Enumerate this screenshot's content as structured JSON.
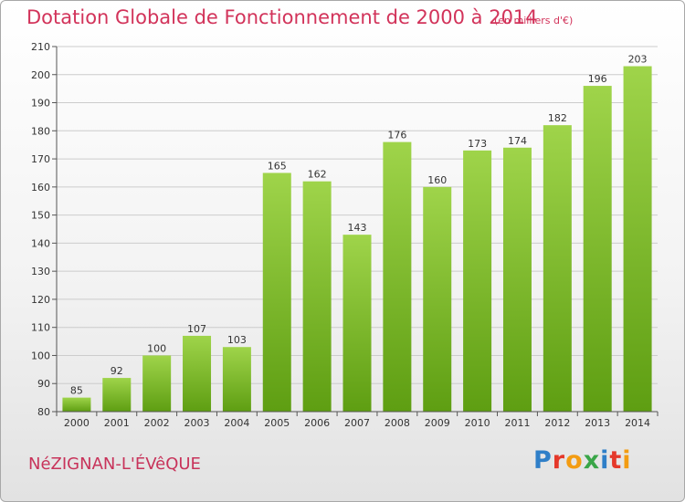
{
  "header": {
    "title": "Dotation Globale de Fonctionnement de 2000 à 2014",
    "unit": "(en milliers d'€)"
  },
  "footer": {
    "commune": "NéZIGNAN-L'ÉVêQUE",
    "logo_text": "Proxiti",
    "logo_colors": [
      "#2f7fc8",
      "#e5382a",
      "#f39c12",
      "#3aa648",
      "#2f7fc8",
      "#e5382a",
      "#f39c12"
    ]
  },
  "colors": {
    "bar_top": "#9fd44a",
    "bar_bottom": "#5e9e12",
    "grid": "#cccccc",
    "axis": "#555555"
  },
  "chart_data": {
    "type": "bar",
    "title": "Dotation Globale de Fonctionnement de 2000 à 2014",
    "subtitle": "(en milliers d'€)",
    "categories": [
      "2000",
      "2001",
      "2002",
      "2003",
      "2004",
      "2005",
      "2006",
      "2007",
      "2008",
      "2009",
      "2010",
      "2011",
      "2012",
      "2013",
      "2014"
    ],
    "values": [
      85,
      92,
      100,
      107,
      103,
      165,
      162,
      143,
      176,
      160,
      173,
      174,
      182,
      196,
      203
    ],
    "ylim": [
      80,
      210
    ],
    "yticks": [
      80,
      90,
      100,
      110,
      120,
      130,
      140,
      150,
      160,
      170,
      180,
      190,
      200,
      210
    ],
    "grid": true,
    "legend": "none"
  }
}
